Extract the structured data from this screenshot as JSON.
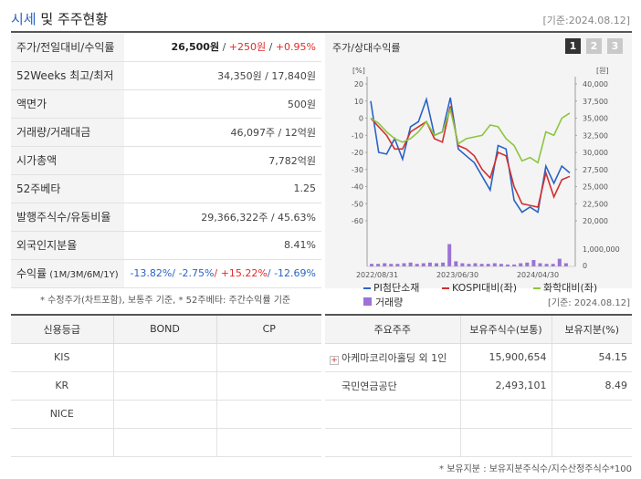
{
  "header": {
    "title_part1": "시세",
    "title_part2": " 및 주주현황",
    "std_date": "[기준:2024.08.12]"
  },
  "price_table": {
    "rows": [
      {
        "label": "주가/전일대비/수익률",
        "price": "26,500원",
        "sep1": " / ",
        "change": "+250원",
        "sep2": " / ",
        "pct": "+0.95%"
      },
      {
        "label": "52Weeks 최고/최저",
        "value": "34,350원 / 17,840원"
      },
      {
        "label": "액면가",
        "value": "500원"
      },
      {
        "label": "거래량/거래대금",
        "value": "46,097주 / 12억원"
      },
      {
        "label": "시가총액",
        "value": "7,782억원"
      },
      {
        "label": "52주베타",
        "value": "1.25"
      },
      {
        "label": "발행주식수/유동비율",
        "value": "29,366,322주 / 45.63%"
      },
      {
        "label": "외국인지분율",
        "value": "8.41%"
      },
      {
        "label": "수익률",
        "label_sub": " (1M/3M/6M/1Y)",
        "r1": "-13.82%",
        "r2": "/ -2.75%",
        "r3": "/ +15.22%",
        "r4": "/ -12.69%"
      }
    ],
    "note": "* 수정주가(차트포함), 보통주 기준, * 52주베타: 주간수익률 기준"
  },
  "chart_panel": {
    "title": "주가/상대수익률",
    "tabs": [
      "1",
      "2",
      "3"
    ],
    "active_tab": "1",
    "std_date": "[기준: 2024.08.12]"
  },
  "chart_data": {
    "type": "line",
    "left_unit": "[%]",
    "right_unit": "[원]",
    "left_ylim": [
      -60,
      20
    ],
    "left_ticks": [
      "20",
      "10",
      "0",
      "-10",
      "-20",
      "-30",
      "-40",
      "-50",
      "-60"
    ],
    "right_ylim": [
      20000,
      40000
    ],
    "right_ticks": [
      "40,000",
      "37,500",
      "35,000",
      "32,500",
      "30,000",
      "27,500",
      "25,000",
      "22,500",
      "20,000"
    ],
    "volume_ticks": [
      "1,000,000",
      "0"
    ],
    "x_tick_labels": [
      "2022/08/31",
      "2023/06/30",
      "2024/04/30"
    ],
    "series": [
      {
        "name": "PI첨단소재",
        "color": "#2a64c5",
        "values": [
          10,
          -20,
          -21,
          -12,
          -24,
          -5,
          -2,
          11,
          -10,
          -8,
          12,
          -18,
          -22,
          -26,
          -34,
          -42,
          -16,
          -18,
          -48,
          -55,
          -52,
          -55,
          -28,
          -38,
          -28,
          -32
        ]
      },
      {
        "name": "KOSPI대비(좌)",
        "color": "#d03030",
        "values": [
          0,
          -5,
          -10,
          -18,
          -18,
          -8,
          -5,
          -2,
          -12,
          -14,
          7,
          -16,
          -18,
          -22,
          -30,
          -35,
          -20,
          -22,
          -40,
          -50,
          -51,
          -52,
          -32,
          -46,
          -36,
          -34
        ]
      },
      {
        "name": "화학대비(좌)",
        "color": "#8cc53f",
        "values": [
          0,
          -3,
          -8,
          -12,
          -14,
          -12,
          -8,
          -2,
          -10,
          -8,
          5,
          -15,
          -12,
          -11,
          -10,
          -4,
          -5,
          -12,
          -16,
          -25,
          -23,
          -26,
          -8,
          -10,
          0,
          3
        ]
      }
    ],
    "volume": {
      "name": "거래량",
      "color": "#9b73d6",
      "values": [
        0.04,
        0.04,
        0.05,
        0.04,
        0.04,
        0.05,
        0.06,
        0.04,
        0.05,
        0.06,
        0.05,
        0.06,
        0.35,
        0.08,
        0.05,
        0.04,
        0.05,
        0.04,
        0.04,
        0.05,
        0.04,
        0.03,
        0.03,
        0.05,
        0.06,
        0.1,
        0.05,
        0.04,
        0.04,
        0.12,
        0.05
      ],
      "unit": "millions of shares"
    }
  },
  "credit_table": {
    "headers": [
      "신용등급",
      "BOND",
      "CP"
    ],
    "rows": [
      {
        "agency": "KIS",
        "bond": "",
        "cp": ""
      },
      {
        "agency": "KR",
        "bond": "",
        "cp": ""
      },
      {
        "agency": "NICE",
        "bond": "",
        "cp": ""
      },
      {
        "agency": "",
        "bond": "",
        "cp": ""
      }
    ]
  },
  "holder_table": {
    "headers": [
      "주요주주",
      "보유주식수(보통)",
      "보유지분(%)"
    ],
    "rows": [
      {
        "name": "아케마코리아홀딩 외 1인",
        "shares": "15,900,654",
        "pct": "54.15",
        "expandable": true
      },
      {
        "name": "국민연금공단",
        "shares": "2,493,101",
        "pct": "8.49",
        "expandable": false
      },
      {
        "name": "",
        "shares": "",
        "pct": ""
      },
      {
        "name": "",
        "shares": "",
        "pct": ""
      }
    ],
    "note": "* 보유지분 : 보유지분주식수/지수산정주식수*100"
  }
}
